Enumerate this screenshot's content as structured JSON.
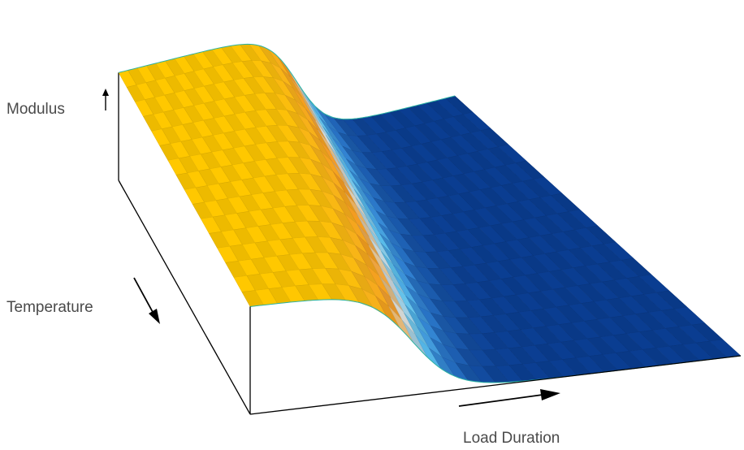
{
  "chart_data": {
    "type": "surface",
    "title": "",
    "xlabel": "Load Duration",
    "ylabel": "Temperature",
    "zlabel": "Modulus",
    "grid": {
      "load_duration_cells": 36,
      "temperature_cells": 16
    },
    "surface_model": {
      "form": "sigmoid",
      "z_high": 1.0,
      "z_low": 0.22,
      "transition_center": 0.53,
      "transition_width": 0.045,
      "temperature_shift": -0.2
    },
    "colormap": [
      "#0a3d91",
      "#2f7fd0",
      "#5bc0eb",
      "#cfd8dc",
      "#f39a22",
      "#f7b21a",
      "#ffc800"
    ]
  }
}
